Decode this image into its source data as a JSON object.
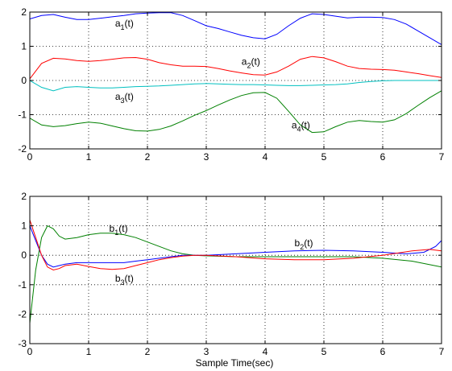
{
  "chart_data": [
    {
      "type": "line",
      "title": "",
      "xlabel": "",
      "ylabel": "",
      "xlim": [
        0,
        7
      ],
      "ylim": [
        -2,
        2
      ],
      "xticks": [
        0,
        1,
        2,
        3,
        4,
        5,
        6,
        7
      ],
      "yticks": [
        -2,
        -1,
        0,
        1,
        2
      ],
      "grid": true,
      "legend": "none",
      "series": [
        {
          "name": "a1(t)",
          "color": "#0000ff",
          "x": [
            0,
            0.2,
            0.4,
            0.6,
            0.8,
            1.0,
            1.2,
            1.4,
            1.6,
            1.8,
            2.0,
            2.2,
            2.4,
            2.6,
            2.8,
            3.0,
            3.2,
            3.4,
            3.6,
            3.8,
            4.0,
            4.2,
            4.4,
            4.6,
            4.8,
            5.0,
            5.2,
            5.4,
            5.6,
            5.8,
            6.0,
            6.2,
            6.4,
            6.6,
            6.8,
            7.0
          ],
          "y": [
            1.8,
            1.9,
            1.93,
            1.85,
            1.78,
            1.78,
            1.82,
            1.86,
            1.9,
            1.95,
            1.97,
            1.98,
            1.98,
            1.9,
            1.75,
            1.6,
            1.52,
            1.42,
            1.32,
            1.25,
            1.22,
            1.35,
            1.6,
            1.82,
            1.95,
            1.93,
            1.88,
            1.83,
            1.85,
            1.85,
            1.84,
            1.78,
            1.65,
            1.45,
            1.25,
            1.05
          ]
        },
        {
          "name": "a2(t)",
          "color": "#ff0000",
          "x": [
            0,
            0.2,
            0.4,
            0.6,
            0.8,
            1.0,
            1.2,
            1.4,
            1.6,
            1.8,
            2.0,
            2.2,
            2.4,
            2.6,
            2.8,
            3.0,
            3.2,
            3.4,
            3.6,
            3.8,
            4.0,
            4.2,
            4.4,
            4.6,
            4.8,
            5.0,
            5.2,
            5.4,
            5.6,
            5.8,
            6.0,
            6.2,
            6.4,
            6.6,
            6.8,
            7.0
          ],
          "y": [
            0.05,
            0.5,
            0.65,
            0.63,
            0.58,
            0.56,
            0.58,
            0.62,
            0.66,
            0.67,
            0.62,
            0.52,
            0.46,
            0.42,
            0.42,
            0.41,
            0.35,
            0.28,
            0.22,
            0.17,
            0.16,
            0.25,
            0.42,
            0.62,
            0.7,
            0.66,
            0.55,
            0.42,
            0.35,
            0.33,
            0.32,
            0.3,
            0.25,
            0.2,
            0.14,
            0.09
          ]
        },
        {
          "name": "a3(t)",
          "color": "#00c0c0",
          "x": [
            0,
            0.2,
            0.4,
            0.6,
            0.8,
            1.0,
            1.2,
            1.4,
            1.6,
            1.8,
            2.0,
            2.2,
            2.4,
            2.6,
            2.8,
            3.0,
            3.2,
            3.4,
            3.6,
            3.8,
            4.0,
            4.2,
            4.4,
            4.6,
            4.8,
            5.0,
            5.2,
            5.4,
            5.6,
            5.8,
            6.0,
            6.2,
            6.4,
            6.6,
            6.8,
            7.0
          ],
          "y": [
            0.0,
            -0.2,
            -0.3,
            -0.2,
            -0.18,
            -0.2,
            -0.22,
            -0.22,
            -0.2,
            -0.18,
            -0.17,
            -0.16,
            -0.14,
            -0.12,
            -0.1,
            -0.09,
            -0.1,
            -0.11,
            -0.12,
            -0.12,
            -0.13,
            -0.14,
            -0.15,
            -0.15,
            -0.14,
            -0.13,
            -0.12,
            -0.1,
            -0.06,
            -0.03,
            -0.01,
            0.0,
            0.0,
            0.0,
            0.0,
            0.0
          ]
        },
        {
          "name": "a4(t)",
          "color": "#008000",
          "x": [
            0,
            0.2,
            0.4,
            0.6,
            0.8,
            1.0,
            1.2,
            1.4,
            1.6,
            1.8,
            2.0,
            2.2,
            2.4,
            2.6,
            2.8,
            3.0,
            3.2,
            3.4,
            3.6,
            3.8,
            4.0,
            4.2,
            4.4,
            4.6,
            4.8,
            5.0,
            5.2,
            5.4,
            5.6,
            5.8,
            6.0,
            6.2,
            6.4,
            6.6,
            6.8,
            7.0
          ],
          "y": [
            -1.1,
            -1.3,
            -1.35,
            -1.32,
            -1.26,
            -1.22,
            -1.25,
            -1.33,
            -1.41,
            -1.47,
            -1.48,
            -1.43,
            -1.33,
            -1.18,
            -1.02,
            -0.88,
            -0.72,
            -0.57,
            -0.44,
            -0.36,
            -0.35,
            -0.52,
            -0.9,
            -1.3,
            -1.52,
            -1.5,
            -1.35,
            -1.22,
            -1.17,
            -1.2,
            -1.22,
            -1.15,
            -0.97,
            -0.73,
            -0.5,
            -0.3
          ]
        }
      ],
      "annotations": [
        {
          "text": "a",
          "sub": "1",
          "suffix": "(t)",
          "x": 1.45,
          "y": 1.58
        },
        {
          "text": "a",
          "sub": "2",
          "suffix": "(t)",
          "x": 3.6,
          "y": 0.46
        },
        {
          "text": "a",
          "sub": "3",
          "suffix": "(t)",
          "x": 1.45,
          "y": -0.56
        },
        {
          "text": "a",
          "sub": "4",
          "suffix": "(t)",
          "x": 4.45,
          "y": -1.4
        }
      ]
    },
    {
      "type": "line",
      "title": "",
      "xlabel": "Sample Time(sec)",
      "ylabel": "",
      "xlim": [
        0,
        7
      ],
      "ylim": [
        -3,
        2
      ],
      "xticks": [
        0,
        1,
        2,
        3,
        4,
        5,
        6,
        7
      ],
      "yticks": [
        -3,
        -2,
        -1,
        0,
        1,
        2
      ],
      "grid": true,
      "legend": "none",
      "series": [
        {
          "name": "b1(t)",
          "color": "#008000",
          "x": [
            0,
            0.1,
            0.2,
            0.3,
            0.4,
            0.5,
            0.6,
            0.8,
            1.0,
            1.2,
            1.4,
            1.6,
            1.8,
            2.0,
            2.2,
            2.4,
            2.6,
            2.8,
            3.0,
            3.5,
            4.0,
            4.5,
            5.0,
            5.5,
            6.0,
            6.5,
            7.0
          ],
          "y": [
            -2.3,
            -0.5,
            0.6,
            1.0,
            0.9,
            0.65,
            0.55,
            0.6,
            0.7,
            0.75,
            0.75,
            0.7,
            0.6,
            0.45,
            0.3,
            0.15,
            0.05,
            0.0,
            -0.02,
            -0.05,
            -0.05,
            -0.05,
            -0.05,
            -0.05,
            -0.1,
            -0.2,
            -0.4
          ]
        },
        {
          "name": "b2(t)",
          "color": "#0000ff",
          "x": [
            0,
            0.1,
            0.2,
            0.3,
            0.4,
            0.5,
            0.6,
            0.8,
            1.0,
            1.2,
            1.4,
            1.6,
            1.8,
            2.0,
            2.2,
            2.4,
            2.6,
            2.8,
            3.0,
            3.5,
            4.0,
            4.5,
            5.0,
            5.5,
            6.0,
            6.4,
            6.7,
            6.9,
            7.0
          ],
          "y": [
            1.0,
            0.5,
            0.0,
            -0.3,
            -0.4,
            -0.35,
            -0.3,
            -0.25,
            -0.25,
            -0.25,
            -0.25,
            -0.25,
            -0.2,
            -0.15,
            -0.1,
            -0.05,
            0.0,
            0.0,
            0.0,
            0.05,
            0.1,
            0.15,
            0.17,
            0.15,
            0.1,
            0.05,
            0.1,
            0.3,
            0.5
          ]
        },
        {
          "name": "b3(t)",
          "color": "#ff0000",
          "x": [
            0,
            0.1,
            0.2,
            0.3,
            0.4,
            0.5,
            0.6,
            0.8,
            1.0,
            1.2,
            1.4,
            1.6,
            1.8,
            2.0,
            2.2,
            2.4,
            2.6,
            2.8,
            3.0,
            3.5,
            4.0,
            4.5,
            5.0,
            5.5,
            6.0,
            6.5,
            6.8,
            7.0
          ],
          "y": [
            1.2,
            0.6,
            0.0,
            -0.4,
            -0.5,
            -0.45,
            -0.35,
            -0.3,
            -0.38,
            -0.45,
            -0.48,
            -0.45,
            -0.35,
            -0.25,
            -0.15,
            -0.08,
            -0.03,
            0.0,
            0.0,
            -0.05,
            -0.12,
            -0.15,
            -0.15,
            -0.1,
            0.0,
            0.15,
            0.2,
            0.15
          ]
        }
      ],
      "annotations": [
        {
          "text": "b",
          "sub": "1",
          "suffix": "(t)",
          "x": 1.35,
          "y": 0.8
        },
        {
          "text": "b",
          "sub": "2",
          "suffix": "(t)",
          "x": 4.5,
          "y": 0.3
        },
        {
          "text": "b",
          "sub": "3",
          "suffix": "(t)",
          "x": 1.45,
          "y": -0.9
        }
      ]
    }
  ]
}
